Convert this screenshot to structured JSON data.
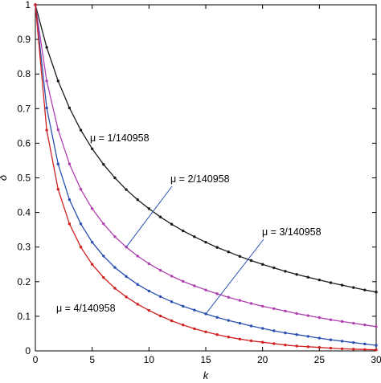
{
  "chart_data": {
    "type": "line",
    "xlabel": "k",
    "ylabel": "δ",
    "xlim": [
      0,
      30
    ],
    "ylim": [
      0,
      1
    ],
    "grid": false,
    "xticks": [
      "0",
      "5",
      "10",
      "15",
      "20",
      "25",
      "30"
    ],
    "yticks": [
      "0",
      "0.1",
      "0.2",
      "0.3",
      "0.4",
      "0.5",
      "0.6",
      "0.7",
      "0.8",
      "0.9",
      "1"
    ],
    "x": [
      0,
      1,
      2,
      3,
      4,
      5,
      6,
      7,
      8,
      9,
      10,
      11,
      12,
      13,
      14,
      15,
      16,
      17,
      18,
      19,
      20,
      21,
      22,
      23,
      24,
      25,
      26,
      27,
      28,
      29,
      30
    ],
    "series": [
      {
        "color": "#1a1a1a",
        "values": [
          1.0,
          0.877,
          0.78,
          0.702,
          0.638,
          0.584,
          0.539,
          0.5,
          0.466,
          0.437,
          0.411,
          0.387,
          0.366,
          0.347,
          0.33,
          0.314,
          0.299,
          0.286,
          0.273,
          0.261,
          0.25,
          0.24,
          0.23,
          0.221,
          0.213,
          0.205,
          0.197,
          0.19,
          0.183,
          0.176,
          0.17
        ]
      },
      {
        "color": "#b040b0",
        "values": [
          1.0,
          0.78,
          0.639,
          0.54,
          0.467,
          0.411,
          0.367,
          0.33,
          0.3,
          0.274,
          0.252,
          0.233,
          0.216,
          0.201,
          0.188,
          0.176,
          0.165,
          0.155,
          0.146,
          0.137,
          0.129,
          0.122,
          0.115,
          0.108,
          0.102,
          0.096,
          0.09,
          0.085,
          0.08,
          0.075,
          0.07
        ]
      },
      {
        "color": "#2a4fb0",
        "values": [
          1.0,
          0.702,
          0.54,
          0.437,
          0.367,
          0.314,
          0.274,
          0.241,
          0.215,
          0.192,
          0.173,
          0.157,
          0.142,
          0.129,
          0.118,
          0.107,
          0.097,
          0.088,
          0.08,
          0.072,
          0.065,
          0.058,
          0.052,
          0.047,
          0.042,
          0.037,
          0.032,
          0.028,
          0.024,
          0.02,
          0.016
        ]
      },
      {
        "color": "#d02020",
        "values": [
          1.0,
          0.638,
          0.467,
          0.367,
          0.3,
          0.25,
          0.212,
          0.181,
          0.156,
          0.135,
          0.117,
          0.101,
          0.087,
          0.075,
          0.064,
          0.055,
          0.047,
          0.04,
          0.034,
          0.029,
          0.025,
          0.021,
          0.017,
          0.014,
          0.012,
          0.01,
          0.008,
          0.006,
          0.005,
          0.004,
          0.003
        ]
      }
    ],
    "annotations": [
      {
        "text": "μ = 1/140958",
        "series": 0
      },
      {
        "text": "μ = 2/140958",
        "series": 1
      },
      {
        "text": "μ = 3/140958",
        "series": 2
      },
      {
        "text": "μ = 4/140958",
        "series": 3
      }
    ]
  }
}
